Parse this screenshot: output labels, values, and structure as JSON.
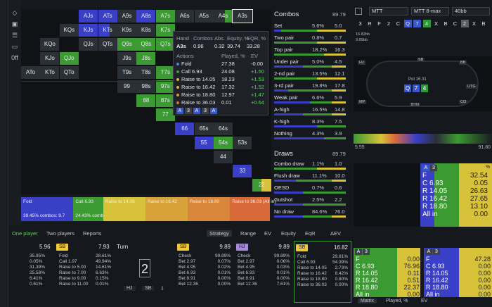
{
  "grid": {
    "cells": [
      {
        "l": "AJs",
        "c": 3,
        "r": 0,
        "seg": [
          [
            "b",
            0,
            100
          ]
        ]
      },
      {
        "l": "ATs",
        "c": 4,
        "r": 0,
        "seg": [
          [
            "b",
            0,
            100
          ]
        ]
      },
      {
        "l": "A9s",
        "c": 5,
        "r": 0,
        "seg": [
          [
            "gr",
            0,
            100
          ]
        ]
      },
      {
        "l": "A8s",
        "c": 6,
        "r": 0,
        "seg": [
          [
            "b",
            0,
            100
          ]
        ]
      },
      {
        "l": "A7s",
        "c": 7,
        "r": 0,
        "seg": [
          [
            "g",
            0,
            100
          ]
        ]
      },
      {
        "l": "A6s",
        "c": 8,
        "r": 0,
        "seg": [
          [
            "gr",
            0,
            100
          ]
        ]
      },
      {
        "l": "A5s",
        "c": 9,
        "r": 0,
        "seg": [
          [
            "gr",
            0,
            100
          ]
        ]
      },
      {
        "l": "A4s",
        "c": 10,
        "r": 0,
        "seg": [
          [
            "gr",
            0,
            60
          ],
          [
            "g",
            60,
            100
          ]
        ]
      },
      {
        "l": "A3s",
        "c": 11,
        "r": 0,
        "seg": [
          [
            "gr",
            0,
            100
          ]
        ]
      },
      {
        "l": "KQs",
        "c": 2,
        "r": 1,
        "seg": [
          [
            "gr",
            0,
            100
          ]
        ]
      },
      {
        "l": "KJs",
        "c": 3,
        "r": 1,
        "seg": [
          [
            "b",
            0,
            100
          ]
        ]
      },
      {
        "l": "KTs",
        "c": 4,
        "r": 1,
        "seg": [
          [
            "b",
            0,
            60
          ],
          [
            "gr",
            60,
            100
          ]
        ]
      },
      {
        "l": "K9s",
        "c": 5,
        "r": 1,
        "seg": [
          [
            "gr",
            0,
            100
          ]
        ]
      },
      {
        "l": "K8s",
        "c": 6,
        "r": 1,
        "seg": [
          [
            "gr",
            0,
            100
          ]
        ]
      },
      {
        "l": "K7s",
        "c": 7,
        "r": 1,
        "seg": [
          [
            "g",
            0,
            100
          ]
        ]
      },
      {
        "l": "KQo",
        "c": 1,
        "r": 2,
        "seg": [
          [
            "gr",
            0,
            100
          ]
        ]
      },
      {
        "l": "QJs",
        "c": 3,
        "r": 2,
        "seg": [
          [
            "gr",
            0,
            100
          ]
        ]
      },
      {
        "l": "QTs",
        "c": 4,
        "r": 2,
        "seg": [
          [
            "gr",
            0,
            100
          ]
        ]
      },
      {
        "l": "Q9s",
        "c": 5,
        "r": 2,
        "seg": [
          [
            "g",
            0,
            100
          ]
        ]
      },
      {
        "l": "Q8s",
        "c": 6,
        "r": 2,
        "seg": [
          [
            "g",
            0,
            100
          ]
        ]
      },
      {
        "l": "Q7s",
        "c": 7,
        "r": 2,
        "seg": [
          [
            "g",
            0,
            100
          ]
        ]
      },
      {
        "l": "KJo",
        "c": 1,
        "r": 3,
        "seg": [
          [
            "gr",
            0,
            100
          ]
        ]
      },
      {
        "l": "QJo",
        "c": 2,
        "r": 3,
        "seg": [
          [
            "g",
            0,
            100
          ]
        ]
      },
      {
        "l": "J9s",
        "c": 5,
        "r": 3,
        "seg": [
          [
            "gr",
            0,
            100
          ]
        ]
      },
      {
        "l": "J8s",
        "c": 6,
        "r": 3,
        "seg": [
          [
            "g",
            0,
            100
          ]
        ]
      },
      {
        "l": "ATo",
        "c": 0,
        "r": 4,
        "seg": [
          [
            "gr",
            0,
            100
          ]
        ]
      },
      {
        "l": "KTo",
        "c": 1,
        "r": 4,
        "seg": [
          [
            "gr",
            0,
            100
          ]
        ]
      },
      {
        "l": "QTo",
        "c": 2,
        "r": 4,
        "seg": [
          [
            "gr",
            0,
            100
          ]
        ]
      },
      {
        "l": "T9s",
        "c": 5,
        "r": 4,
        "seg": [
          [
            "gr",
            0,
            100
          ]
        ]
      },
      {
        "l": "T8s",
        "c": 6,
        "r": 4,
        "seg": [
          [
            "gr",
            0,
            100
          ]
        ]
      },
      {
        "l": "T7s",
        "c": 7,
        "r": 4,
        "seg": [
          [
            "g",
            0,
            100
          ]
        ]
      },
      {
        "l": "99",
        "c": 5,
        "r": 5,
        "seg": [
          [
            "gr",
            0,
            100
          ]
        ]
      },
      {
        "l": "98s",
        "c": 6,
        "r": 5,
        "seg": [
          [
            "gr",
            0,
            100
          ]
        ]
      },
      {
        "l": "97s",
        "c": 7,
        "r": 5,
        "seg": [
          [
            "g",
            0,
            100
          ]
        ]
      },
      {
        "l": "88",
        "c": 6,
        "r": 6,
        "seg": [
          [
            "g",
            0,
            100
          ]
        ]
      },
      {
        "l": "87s",
        "c": 7,
        "r": 6,
        "seg": [
          [
            "g",
            0,
            100
          ]
        ]
      },
      {
        "l": "77",
        "c": 7,
        "r": 7,
        "seg": [
          [
            "g",
            0,
            100
          ]
        ]
      },
      {
        "l": "66",
        "c": 8,
        "r": 8,
        "seg": [
          [
            "b",
            0,
            100
          ]
        ]
      },
      {
        "l": "65s",
        "c": 9,
        "r": 8,
        "seg": [
          [
            "gr",
            0,
            100
          ]
        ]
      },
      {
        "l": "64s",
        "c": 10,
        "r": 8,
        "seg": [
          [
            "gr",
            0,
            100
          ]
        ]
      },
      {
        "l": "55",
        "c": 9,
        "r": 9,
        "seg": [
          [
            "b",
            0,
            100
          ]
        ]
      },
      {
        "l": "54s",
        "c": 10,
        "r": 9,
        "seg": [
          [
            "g",
            0,
            100
          ]
        ]
      },
      {
        "l": "53s",
        "c": 11,
        "r": 9,
        "seg": [
          [
            "gr",
            0,
            100
          ]
        ]
      },
      {
        "l": "44",
        "c": 10,
        "r": 10,
        "seg": [
          [
            "gr",
            0,
            100
          ]
        ]
      },
      {
        "l": "33",
        "c": 11,
        "r": 11,
        "seg": [
          [
            "b",
            0,
            100
          ]
        ]
      },
      {
        "l": "22",
        "c": 12,
        "r": 12,
        "seg": [
          [
            "g",
            0,
            50
          ],
          [
            "y",
            50,
            100
          ]
        ]
      }
    ]
  },
  "hover": {
    "headers": [
      "Hand",
      "Combos",
      "Abs.",
      "Equity, %",
      "EQR, %"
    ],
    "hand": [
      "A3s",
      "0.96",
      "0.32",
      "39.74",
      "33.28"
    ],
    "act_hdr": [
      "Actions",
      "Played, %",
      "EV"
    ],
    "actions": [
      {
        "name": "Fold",
        "played": "27.38",
        "ev": "-0.00",
        "dot": "#5a77d8"
      },
      {
        "name": "Call 6.93",
        "played": "24.08",
        "ev": "+1.50",
        "dot": "#3c9a32"
      },
      {
        "name": "Raise to 14.05",
        "played": "18.23",
        "ev": "+1.53",
        "dot": "#d8b63a"
      },
      {
        "name": "Raise to 16.42",
        "played": "17.32",
        "ev": "+1.52",
        "dot": "#d8b63a"
      },
      {
        "name": "Raise to 18.80",
        "played": "12.97",
        "ev": "+1.47",
        "dot": "#d89a3a"
      },
      {
        "name": "Raise to 36.03",
        "played": "0.01",
        "ev": "+0.64",
        "dot": "#d8703a"
      }
    ],
    "cards": [
      "A",
      "3",
      "A",
      "3",
      "A"
    ]
  },
  "actbar": [
    {
      "label": "Fold",
      "sub": "39.45%  combos: 9.7",
      "color": "#3a3fc8",
      "w": 21
    },
    {
      "label": "Call 6.93",
      "sub": "24.43%  combos: 0.9",
      "color": "#3c9a32",
      "w": 12
    },
    {
      "label": "",
      "sub": "",
      "color": "#8dc63f",
      "w": 0
    },
    {
      "label": "Raise to 14.05",
      "sub": "",
      "color": "#d8c23a",
      "w": 17
    },
    {
      "label": "Raise to 16.42",
      "sub": "",
      "color": "#d8a23a",
      "w": 17
    },
    {
      "label": "Raise to 18.80",
      "sub": "",
      "color": "#d8863a",
      "w": 17
    },
    {
      "label": "Raise to 36.03 (All in)",
      "sub": "",
      "color": "#d86a3a",
      "w": 16
    }
  ],
  "combos": {
    "title": "Combos",
    "total": "89.79",
    "rows": [
      {
        "n": "Set",
        "p": "5.6%",
        "v": "5.0",
        "bar": [
          [
            "#3a3fc8",
            10
          ],
          [
            "#3c9a32",
            50
          ],
          [
            "#d8c23a",
            40
          ]
        ]
      },
      {
        "n": "Two pair",
        "p": "0.8%",
        "v": "0.7",
        "bar": [
          [
            "#3c9a32",
            60
          ],
          [
            "#d8c23a",
            40
          ]
        ]
      },
      {
        "n": "Top pair",
        "p": "18.2%",
        "v": "16.3",
        "bar": [
          [
            "#3c9a32",
            70
          ],
          [
            "#d8c23a",
            30
          ]
        ]
      },
      {
        "n": "Under pair",
        "p": "5.0%",
        "v": "4.5",
        "bar": [
          [
            "#3a3fc8",
            40
          ],
          [
            "#3c9a32",
            40
          ],
          [
            "#d8c23a",
            20
          ]
        ]
      },
      {
        "n": "2-nd pair",
        "p": "13.5%",
        "v": "12.1",
        "bar": [
          [
            "#3c9a32",
            60
          ],
          [
            "#d8c23a",
            40
          ]
        ]
      },
      {
        "n": "3-rd pair",
        "p": "19.8%",
        "v": "17.8",
        "bar": [
          [
            "#3a3fc8",
            20
          ],
          [
            "#3c9a32",
            60
          ],
          [
            "#d8c23a",
            20
          ]
        ]
      },
      {
        "n": "Weak pair",
        "p": "6.6%",
        "v": "5.9",
        "bar": [
          [
            "#3a3fc8",
            50
          ],
          [
            "#3c9a32",
            30
          ],
          [
            "#d8c23a",
            20
          ]
        ]
      },
      {
        "n": "A-high",
        "p": "16.5%",
        "v": "14.8",
        "bar": [
          [
            "#3a3fc8",
            40
          ],
          [
            "#3c9a32",
            40
          ],
          [
            "#d8c23a",
            20
          ]
        ]
      },
      {
        "n": "K-high",
        "p": "8.3%",
        "v": "7.5",
        "bar": [
          [
            "#3a3fc8",
            60
          ],
          [
            "#3c9a32",
            40
          ]
        ]
      },
      {
        "n": "Nothing",
        "p": "4.3%",
        "v": "3.9",
        "bar": [
          [
            "#3a3fc8",
            70
          ],
          [
            "#3c9a32",
            30
          ]
        ]
      }
    ]
  },
  "draws": {
    "title": "Draws",
    "total": "89.79",
    "rows": [
      {
        "n": "Combo draw",
        "p": "1.1%",
        "v": "1.0",
        "bar": [
          [
            "#3c9a32",
            60
          ],
          [
            "#d8c23a",
            40
          ]
        ]
      },
      {
        "n": "Flush draw",
        "p": "11.1%",
        "v": "10.0",
        "bar": [
          [
            "#3a3fc8",
            30
          ],
          [
            "#3c9a32",
            50
          ],
          [
            "#d8c23a",
            20
          ]
        ]
      },
      {
        "n": "OESD",
        "p": "0.7%",
        "v": "0.6",
        "bar": [
          [
            "#3a3fc8",
            40
          ],
          [
            "#3c9a32",
            60
          ]
        ]
      },
      {
        "n": "Gutshot",
        "p": "2.5%",
        "v": "2.2",
        "bar": [
          [
            "#3a3fc8",
            40
          ],
          [
            "#3c9a32",
            60
          ]
        ]
      },
      {
        "n": "No draw",
        "p": "84.6%",
        "v": "76.0",
        "bar": [
          [
            "#3a3fc8",
            40
          ],
          [
            "#3c9a32",
            40
          ],
          [
            "#d8c23a",
            20
          ]
        ]
      }
    ]
  },
  "right_top": {
    "selects": [
      "MTT",
      "MTT 8-max",
      "40bb"
    ],
    "chips": [
      "3",
      "R",
      "F",
      "2",
      "C",
      "Q",
      "7",
      "4",
      "X",
      "B",
      "C",
      "2",
      "X",
      "B"
    ]
  },
  "table": {
    "pot": "Pot 16.31",
    "labels": [
      "16.82bb",
      "9.89bb",
      "9.89bb",
      "5.96bb",
      "7.93bb"
    ],
    "board": [
      "Q",
      "7",
      "4"
    ],
    "pos": [
      "HJ",
      "SB",
      "BB",
      "UTG",
      "CO",
      "BTN",
      "MP"
    ]
  },
  "meter": {
    "left": "5.55",
    "right": "91.80"
  },
  "mini1": {
    "title_cards": [
      "A",
      "3"
    ],
    "title_pct": "%",
    "lines": [
      [
        "F",
        "32.54"
      ],
      [
        "C 6.93",
        "0.05"
      ],
      [
        "R 14.05",
        "26.63"
      ],
      [
        "R 16.42",
        "27.65"
      ],
      [
        "R 18.80",
        "13.10"
      ],
      [
        "All in",
        "0.00"
      ]
    ]
  },
  "mini2": {
    "left_cards": [
      "A",
      "3"
    ],
    "right_cards": [
      "A",
      "3"
    ],
    "left": [
      [
        "F",
        "0.00"
      ],
      [
        "C 6.93",
        "76.96"
      ],
      [
        "R 14.05",
        "0.11"
      ],
      [
        "R 16.42",
        "0.51"
      ],
      [
        "R 18.80",
        "22.37"
      ],
      [
        "All in",
        "0.00"
      ]
    ],
    "right": [
      [
        "F",
        "47.28"
      ],
      [
        "C 6.93",
        "0.00"
      ],
      [
        "R 14.05",
        "0.00"
      ],
      [
        "R 16.42",
        "0.00"
      ],
      [
        "R 18.80",
        "0.00"
      ],
      [
        "All in",
        "0.00"
      ]
    ]
  },
  "bottom_tabs": {
    "left": [
      "One player",
      "Two players",
      "Reports"
    ],
    "right": [
      "Strategy",
      "Range",
      "EV",
      "Equity",
      "EqR",
      "ΔEV"
    ]
  },
  "panels": [
    {
      "pos": "",
      "stack": "5.96",
      "pos2": "SB",
      "stack2": "7.93",
      "rows": [
        [
          "35.95%",
          "Fold",
          "28.61%"
        ],
        [
          "0.05%",
          "Call 1.97",
          "49.94%"
        ],
        [
          "31.39%",
          "Raise to 5.00",
          "14.61%"
        ],
        [
          "25.58%",
          "Raise to 7.00",
          "6.63%"
        ],
        [
          "6.41%",
          "Raise to 9.00",
          "0.15%"
        ],
        [
          "0.61%",
          "Raise to 11.00",
          "0.01%"
        ]
      ]
    },
    {
      "pos": "SB",
      "stack": "9.89",
      "rows": [
        [
          "Check",
          "99.89%"
        ],
        [
          "Bet 2.97",
          "0.07%"
        ],
        [
          "Bet 4.95",
          "0.02%"
        ],
        [
          "Bet 6.93",
          "0.01%"
        ],
        [
          "Bet 8.91",
          "0.00%"
        ],
        [
          "Bet 12.36",
          "0.00%"
        ]
      ]
    },
    {
      "pos": "HJ",
      "stack": "9.89",
      "rows": [
        [
          "Check",
          "99.89%"
        ],
        [
          "Bet 2.97",
          "0.06%"
        ],
        [
          "Bet 4.95",
          "0.03%"
        ],
        [
          "Bet 6.93",
          "0.01%"
        ],
        [
          "Bet 8.91",
          "0.00%"
        ],
        [
          "Bet 12.36",
          "7.61%"
        ]
      ]
    },
    {
      "pos": "SB",
      "stack": "16.82",
      "rows": [
        [
          "Fold",
          "29.81%"
        ],
        [
          "Call 6.93",
          "54.39%"
        ],
        [
          "Raise to 14.05",
          "2.73%"
        ],
        [
          "Raise to 16.42",
          "8.42%"
        ],
        [
          "Raise to 18.80",
          "0.80%"
        ],
        [
          "Raise to 36.03",
          "0.00%"
        ]
      ]
    }
  ],
  "turn": {
    "label": "Turn",
    "card": "2",
    "btns": [
      "HJ",
      "SB"
    ]
  },
  "rb_tabs": [
    "Matrix",
    "Played, %",
    "EV"
  ],
  "colors": {
    "fold": "#3a3fc8",
    "call": "#3c9a32",
    "raise": "#d8c23a",
    "allin": "#d86a3a"
  }
}
